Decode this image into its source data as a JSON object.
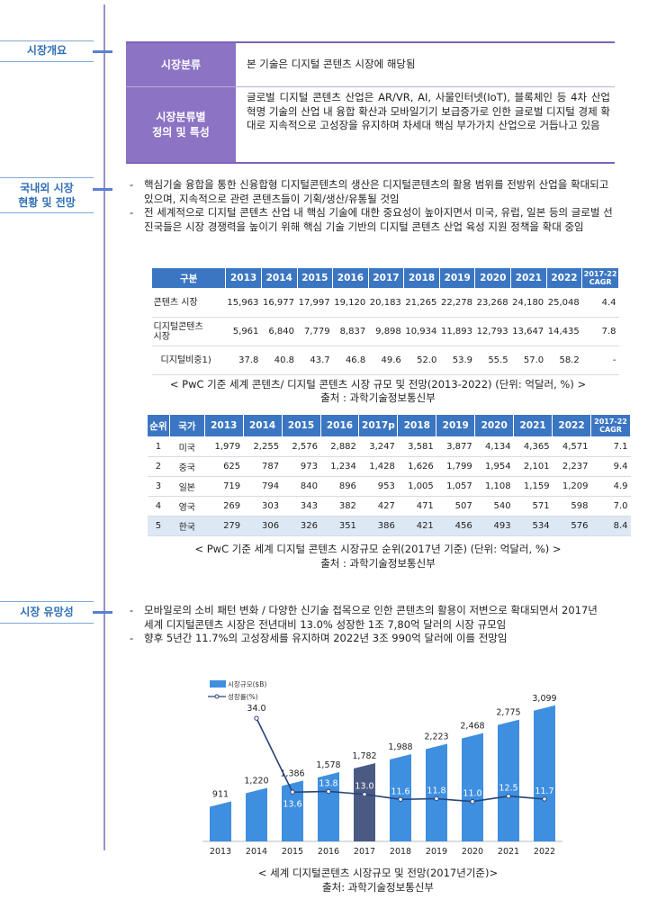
{
  "sections": [
    {
      "label": "시장개요"
    },
    {
      "label": "국내외 시장\n현황 및 전망"
    },
    {
      "label": "시장 유망성"
    }
  ],
  "definition": {
    "row1_head": "시장분류",
    "row1_text": "본 기술은 디지털 콘텐츠 시장에 해당됨",
    "row2_head": "시장분류별\n정의 및 특성",
    "row2_text": "글로벌 디지털 콘텐츠 산업은 AR/VR, AI, 사물인터넷(IoT), 블록체인 등 4차 산업 혁명 기술의 산업 내 융합 확산과 모바일기기 보급증가로 인한 글로벌 디지털 경제 확대로 지속적으로 고성장을 유지하며 차세대 핵심 부가가치 산업으로 거듭나고 있음"
  },
  "status_bullets": [
    "핵심기술 융합을 통한 신융합형 디지털콘텐츠의 생산은 디지털콘텐츠의 활용 범위를 전방위 산업을 확대되고 있으며, 지속적으로 관련 콘텐츠들이 기획/생산/유통될 것임",
    "전 세계적으로 디지털 콘텐츠 산업 내 핵심 기술에 대한 중요성이 높아지면서 미국, 유럽, 일본 등의 글로벌 선진국들은 시장 경쟁력을 높이기 위해 핵심 기술 기반의 디지털 콘텐츠 산업 육성 지원 정책을 확대 중임"
  ],
  "table1": {
    "headers": [
      "구분",
      "2013",
      "2014",
      "2015",
      "2016",
      "2017",
      "2018",
      "2019",
      "2020",
      "2021",
      "2022",
      "2017-22\nCAGR"
    ],
    "rows": [
      [
        "콘텐츠 시장",
        "15,963",
        "16,977",
        "17,997",
        "19,120",
        "20,183",
        "21,265",
        "22,278",
        "23,268",
        "24,180",
        "25,048",
        "4.4"
      ],
      [
        "디지털콘텐츠\n시장",
        "5,961",
        "6,840",
        "7,779",
        "8,837",
        "9,898",
        "10,934",
        "11,893",
        "12,793",
        "13,647",
        "14,435",
        "7.8"
      ],
      [
        "디지털비중1)",
        "37.8",
        "40.8",
        "43.7",
        "46.8",
        "49.6",
        "52.0",
        "53.9",
        "55.5",
        "57.0",
        "58.2",
        "-"
      ]
    ],
    "caption": "< PwC 기준 세계 콘텐츠/ 디지털 콘텐츠 시장 규모 및 전망(2013-2022) (단위: 억달러, %) >",
    "source": "출처 : 과학기술정보통신부"
  },
  "table2": {
    "headers": [
      "순위",
      "국가",
      "2013",
      "2014",
      "2015",
      "2016",
      "2017p",
      "2018",
      "2019",
      "2020",
      "2021",
      "2022",
      "2017-22\nCAGR"
    ],
    "rows": [
      [
        "1",
        "미국",
        "1,979",
        "2,255",
        "2,576",
        "2,882",
        "3,247",
        "3,581",
        "3,877",
        "4,134",
        "4,365",
        "4,571",
        "7.1"
      ],
      [
        "2",
        "중국",
        "625",
        "787",
        "973",
        "1,234",
        "1,428",
        "1,626",
        "1,799",
        "1,954",
        "2,101",
        "2,237",
        "9.4"
      ],
      [
        "3",
        "일본",
        "719",
        "794",
        "840",
        "896",
        "953",
        "1,005",
        "1,057",
        "1,108",
        "1,159",
        "1,209",
        "4.9"
      ],
      [
        "4",
        "영국",
        "269",
        "303",
        "343",
        "382",
        "427",
        "471",
        "507",
        "540",
        "571",
        "598",
        "7.0"
      ],
      [
        "5",
        "한국",
        "279",
        "306",
        "326",
        "351",
        "386",
        "421",
        "456",
        "493",
        "534",
        "576",
        "8.4"
      ]
    ],
    "caption": "< PwC 기준 세계 디지털 콘텐츠 시장규모 순위(2017년 기준) (단위: 억달러, %) >",
    "source": "출처 : 과학기술정보통신부"
  },
  "promise_bullets": [
    "모바일로의 소비 패턴 변화 / 다양한 신기술 접목으로 인한 콘텐츠의 활용이 저변으로 확대되면서 2017년 세계 디지털콘텐츠 시장은 전년대비 13.0% 성장한 1조 7,80억 달러의 시장 규모임",
    "향후 5년간 11.7%의 고성장세를 유지하며 2022년 3조 990억 달러에 이를 전망임"
  ],
  "chart_data": {
    "type": "bar",
    "categories": [
      "2013",
      "2014",
      "2015",
      "2016",
      "2017",
      "2018",
      "2019",
      "2020",
      "2021",
      "2022"
    ],
    "series": [
      {
        "name": "시장규모($B)",
        "type": "bar",
        "values": [
          911,
          1220,
          1386,
          1578,
          1782,
          1988,
          2223,
          2468,
          2775,
          3099
        ]
      },
      {
        "name": "성장률(%)",
        "type": "line",
        "values": [
          null,
          34.0,
          13.6,
          13.8,
          13.0,
          11.6,
          11.8,
          11.0,
          12.5,
          11.7
        ]
      }
    ],
    "bar_labels": [
      "911",
      "1,220",
      "1,386",
      "1,578",
      "1,782",
      "1,988",
      "2,223",
      "2,468",
      "2,775",
      "3,099"
    ],
    "line_labels": [
      "",
      "34.0",
      "13.6",
      "13.8",
      "13.0",
      "11.6",
      "11.8",
      "11.0",
      "12.5",
      "11.7"
    ],
    "highlight_index": 4,
    "bar_ylim": [
      0,
      3300
    ],
    "line_ylim": [
      0,
      40
    ],
    "colors": {
      "bar": "#3f8fe0",
      "highlight": "#4a5a82",
      "line": "#28457a",
      "label_dark": "#222222",
      "label_light": "#ffffff"
    },
    "legend_position": "top-left",
    "caption": "< 세계 디지털콘텐츠 시장규모 및 전망(2017년기준)>",
    "source": "출처: 과학기술정보통신부"
  }
}
